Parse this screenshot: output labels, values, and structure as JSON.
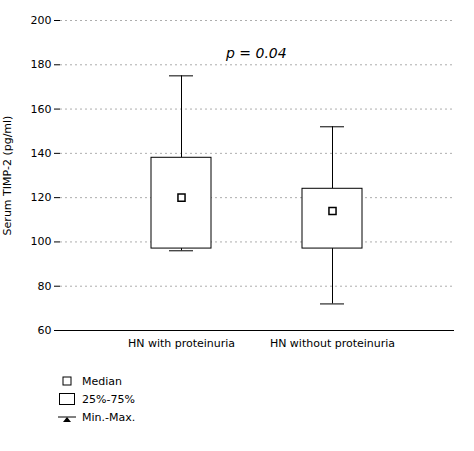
{
  "chart_data": {
    "type": "box",
    "categories": [
      "HN with proteinuria",
      "HN without proteinuria"
    ],
    "boxes": [
      {
        "min": 96,
        "q1": 97,
        "median": 120,
        "q3": 138,
        "max": 175
      },
      {
        "min": 72,
        "q1": 97,
        "median": 114,
        "q3": 124,
        "max": 152
      }
    ],
    "ylabel": "Serum TIMP-2 (pg/ml)",
    "ylim": [
      60,
      200
    ],
    "yticks": [
      60,
      80,
      100,
      120,
      140,
      160,
      180,
      200
    ],
    "grid": true,
    "color": "#000000",
    "marker": "square",
    "annotations": [
      {
        "text": "p = 0.04",
        "y": 185
      }
    ],
    "legend": "lower left",
    "legend_entries": [
      "Median",
      "25%-75%",
      "Min.-Max."
    ]
  }
}
